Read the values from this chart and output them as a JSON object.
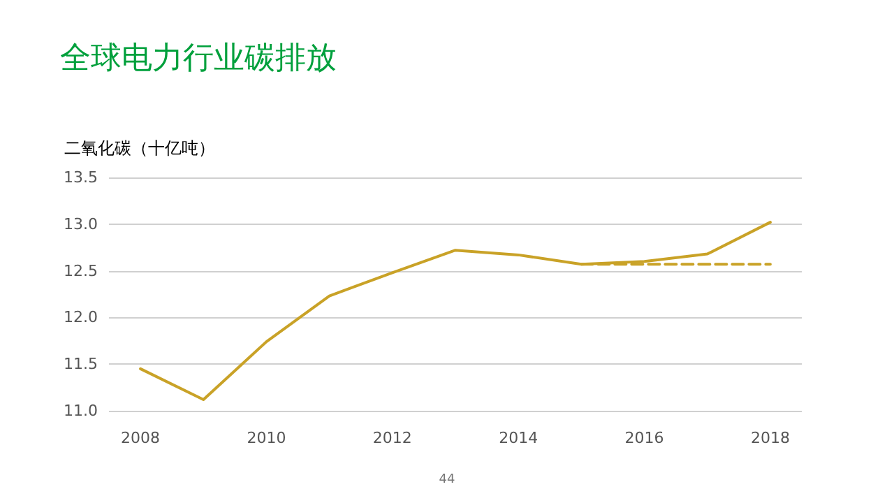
{
  "chart_data": {
    "type": "line",
    "title": "全球电力行业碳排放",
    "ylabel": "二氧化碳（十亿吨）",
    "x": [
      2008,
      2009,
      2010,
      2011,
      2012,
      2013,
      2014,
      2015,
      2016,
      2017,
      2018
    ],
    "series": [
      {
        "color": "#c9a227",
        "values": [
          11.45,
          11.12,
          11.74,
          12.23,
          12.48,
          12.72,
          12.67,
          12.57,
          12.6,
          12.68,
          13.02
        ]
      },
      {
        "color": "#c9a227",
        "type": "line",
        "line_style": "dashed",
        "x": [
          2015,
          2018
        ],
        "values": [
          12.57,
          12.57
        ]
      }
    ],
    "xlim": [
      2007.5,
      2018.5
    ],
    "xticks": [
      2008,
      2010,
      2012,
      2014,
      2016,
      2018
    ],
    "ylim": [
      11.0,
      13.5
    ],
    "yticks": [
      {
        "value": 11,
        "label": "11.0"
      },
      11.5,
      {
        "value": 12,
        "label": "12.0"
      },
      12.5,
      {
        "value": 13,
        "label": "13.0"
      },
      13.5
    ],
    "grid": "y",
    "marker": "none",
    "line_style": "solid",
    "annotations": [
      "44"
    ]
  }
}
